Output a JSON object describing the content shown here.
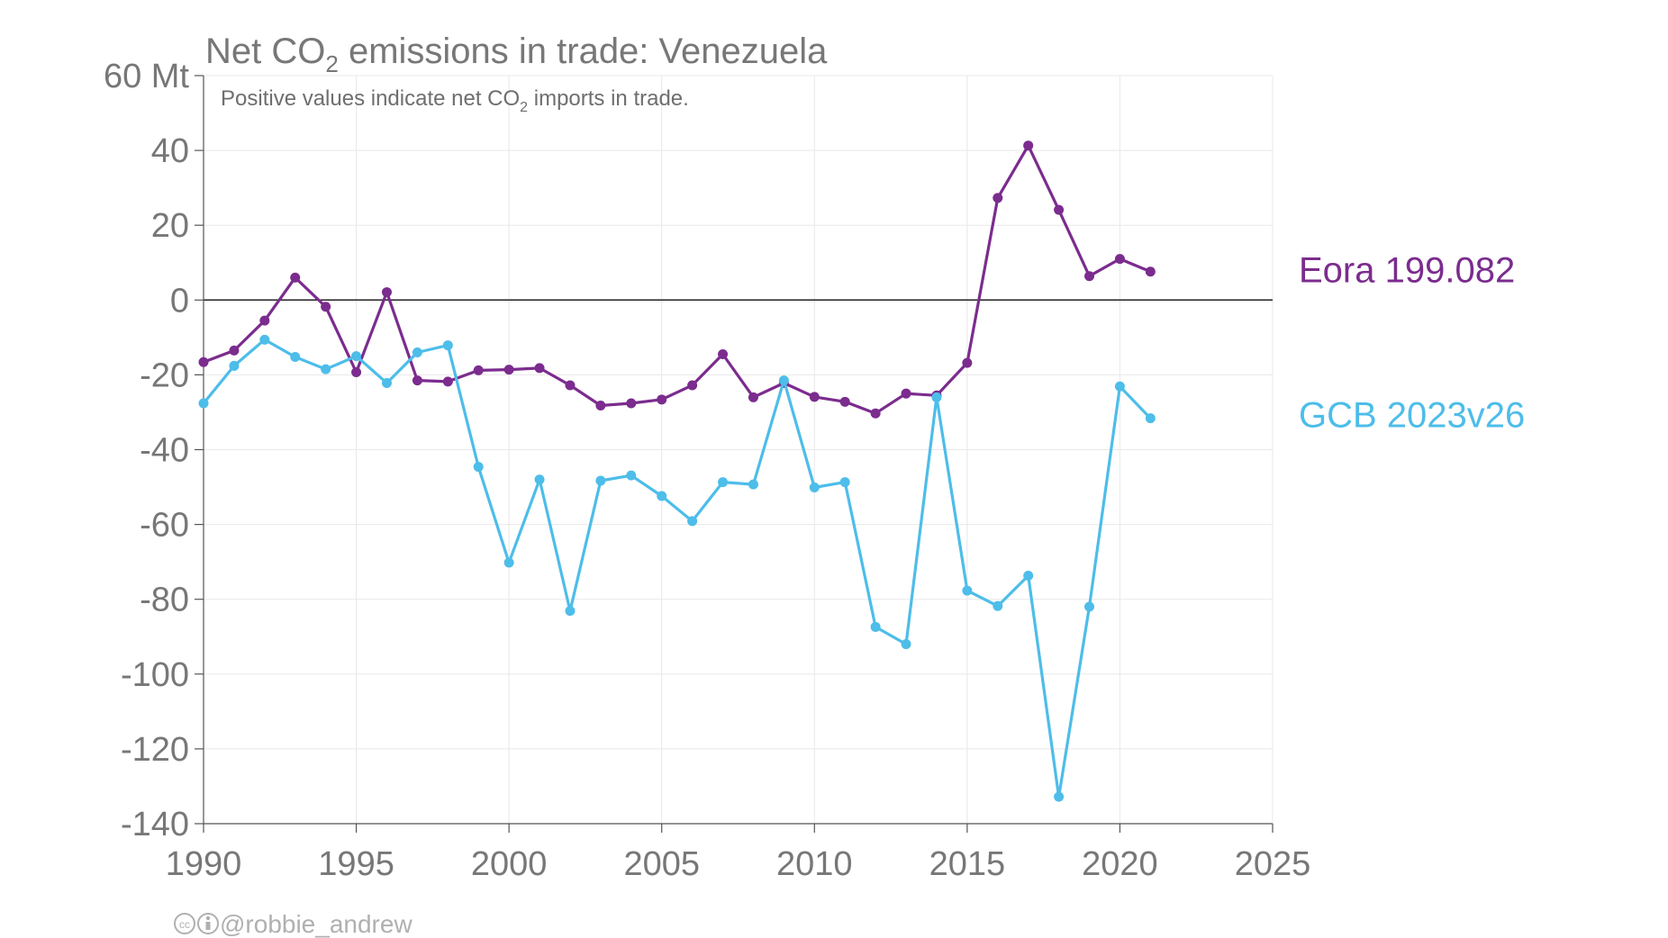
{
  "chart_data": {
    "type": "line",
    "title_main": "Net CO",
    "title_sub": "2",
    "title_rest": " emissions in trade: Venezuela",
    "subtitle_main": "Positive values indicate net CO",
    "subtitle_sub": "2",
    "subtitle_rest": " imports in trade.",
    "yunit": "Mt",
    "xlim": [
      1990,
      2025
    ],
    "ylim": [
      -140,
      60
    ],
    "xticks": [
      1990,
      1995,
      2000,
      2005,
      2010,
      2015,
      2020,
      2025
    ],
    "yticks": [
      60,
      40,
      20,
      0,
      -20,
      -40,
      -60,
      -80,
      -100,
      -120,
      -140
    ],
    "x": [
      1990,
      1991,
      1992,
      1993,
      1994,
      1995,
      1996,
      1997,
      1998,
      1999,
      2000,
      2001,
      2002,
      2003,
      2004,
      2005,
      2006,
      2007,
      2008,
      2009,
      2010,
      2011,
      2012,
      2013,
      2014,
      2015,
      2016,
      2017,
      2018,
      2019,
      2020,
      2021
    ],
    "series": [
      {
        "name": "Eora 199.082",
        "color": "#7b2c8e",
        "values": [
          -16.6,
          -13.5,
          -5.5,
          6.0,
          -1.8,
          -19.3,
          2.1,
          -21.5,
          -21.8,
          -18.8,
          -18.6,
          -18.2,
          -22.8,
          -28.2,
          -27.6,
          -26.6,
          -22.8,
          -14.5,
          -26.0,
          -22.2,
          -25.9,
          -27.2,
          -30.3,
          -25.0,
          -25.5,
          -16.8,
          27.3,
          41.3,
          24.1,
          6.4,
          11.0,
          7.6
        ]
      },
      {
        "name": "GCB 2023v26",
        "color": "#4dbde9",
        "values": [
          -27.6,
          -17.6,
          -10.6,
          -15.2,
          -18.5,
          -15.0,
          -22.2,
          -14.0,
          -12.1,
          -44.6,
          -70.2,
          -48.0,
          -83.1,
          -48.3,
          -46.9,
          -52.4,
          -59.1,
          -48.7,
          -49.3,
          -21.5,
          -50.1,
          -48.7,
          -87.4,
          -92.0,
          -26.0,
          -77.7,
          -81.8,
          -73.7,
          -132.8,
          -82.0,
          -23.1,
          -31.6
        ]
      }
    ],
    "grid": true,
    "zero_line": true,
    "legend": "right"
  },
  "credit": "@robbie_andrew",
  "credit_icons": "cc-by-icon"
}
